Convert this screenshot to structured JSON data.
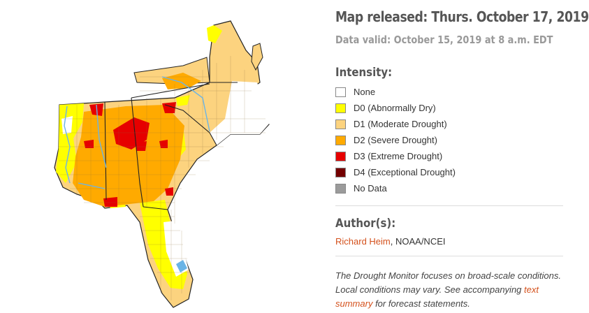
{
  "title": "Map released: Thurs. October 17, 2019",
  "subtitle": "Data valid: October 15, 2019 at 8 a.m. EDT",
  "intensity_heading": "Intensity:",
  "legend": [
    {
      "label": "None",
      "color": "#ffffff"
    },
    {
      "label": "D0 (Abnormally Dry)",
      "color": "#ffff00"
    },
    {
      "label": "D1 (Moderate Drought)",
      "color": "#fcd37f"
    },
    {
      "label": "D2 (Severe Drought)",
      "color": "#ffaa00"
    },
    {
      "label": "D3 (Extreme Drought)",
      "color": "#e60000"
    },
    {
      "label": "D4 (Exceptional Drought)",
      "color": "#730000"
    },
    {
      "label": "No Data",
      "color": "#9b9b9b"
    }
  ],
  "authors_heading": "Author(s):",
  "author": {
    "name": "Richard Heim",
    "affiliation": ", NOAA/NCEI"
  },
  "footnote": {
    "before": "The Drought Monitor focuses on broad-scale conditions. Local conditions may vary. See accompanying ",
    "link": "text summary",
    "after": " for forecast statements."
  },
  "map_colors": {
    "water": "#6ab4e6",
    "border": "#222222",
    "county": "#8a6a3a"
  }
}
